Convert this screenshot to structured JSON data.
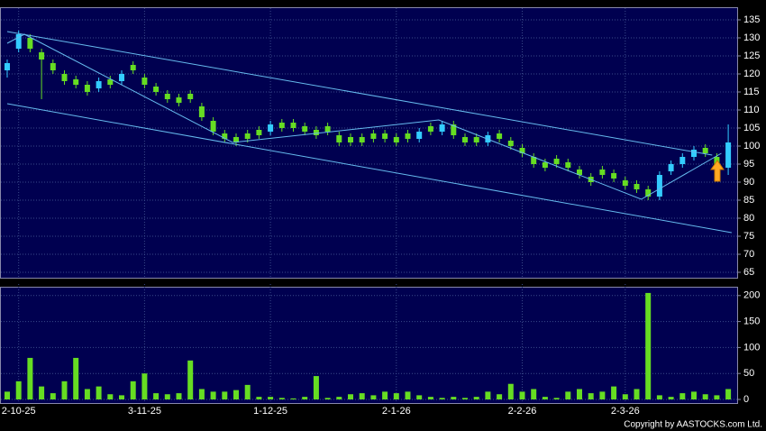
{
  "chart_data": [
    {
      "type": "candlestick",
      "categories": [
        null,
        "2-10-25",
        null,
        null,
        null,
        null,
        null,
        null,
        null,
        null,
        null,
        null,
        "3-11-25",
        null,
        null,
        null,
        null,
        null,
        null,
        null,
        null,
        null,
        null,
        "1-12-25",
        null,
        null,
        null,
        null,
        null,
        null,
        null,
        null,
        null,
        null,
        "2-1-26",
        null,
        null,
        null,
        null,
        null,
        null,
        null,
        null,
        null,
        null,
        "2-2-26",
        null,
        null,
        null,
        null,
        null,
        null,
        null,
        null,
        "2-3-26",
        null,
        null,
        null,
        null,
        null,
        null,
        null,
        null,
        null
      ],
      "open": [
        121,
        127,
        130,
        126,
        123,
        120,
        118.5,
        117,
        116,
        118.5,
        118,
        122.5,
        119,
        116.5,
        114.5,
        113.5,
        114.5,
        111,
        107,
        103.5,
        102.5,
        103.5,
        104.5,
        104,
        106.5,
        106.5,
        105.5,
        104.5,
        105.5,
        103,
        102.5,
        102.5,
        103.5,
        103.5,
        102.5,
        103.5,
        102,
        105.5,
        104,
        106,
        102.5,
        102.5,
        101,
        103.5,
        101.5,
        99.5,
        97,
        95.5,
        96.5,
        95.5,
        93.5,
        91.5,
        93.5,
        92.5,
        90.5,
        89.5,
        88,
        86,
        93,
        95,
        97,
        99.5,
        97,
        94
      ],
      "high": [
        124,
        132,
        131,
        127,
        124,
        121,
        119.5,
        118,
        119,
        119.5,
        121,
        123.5,
        120,
        117.5,
        115.5,
        114.5,
        115.5,
        112,
        108,
        104.5,
        103.5,
        104.5,
        105.5,
        107,
        107.5,
        107.5,
        106.5,
        105.5,
        106.5,
        104,
        103.5,
        103.5,
        104.5,
        104.5,
        103.5,
        104.5,
        105,
        106.5,
        107,
        107,
        103.5,
        103.5,
        104,
        104.5,
        102.5,
        100.5,
        98,
        96.5,
        97.5,
        96.5,
        94.5,
        92.5,
        94.5,
        93.5,
        91.5,
        90.5,
        89,
        93,
        96,
        98,
        100,
        100.5,
        98,
        106
      ],
      "low": [
        119,
        126,
        126,
        113,
        120,
        117,
        116,
        114,
        115,
        116,
        117,
        120,
        116,
        114,
        112,
        111,
        112,
        107,
        103,
        101,
        100,
        101,
        102,
        103,
        104,
        104,
        103,
        102,
        103,
        100,
        100,
        100,
        101,
        101,
        100,
        101,
        101,
        103,
        103,
        102,
        100,
        100,
        100,
        101,
        99,
        97,
        94,
        93,
        94,
        93,
        91,
        89,
        91,
        90,
        88,
        87,
        85,
        85,
        92,
        94,
        96,
        97,
        94,
        92
      ],
      "close": [
        123,
        131,
        127,
        124,
        121,
        118,
        117,
        115,
        118,
        117,
        120,
        121,
        117,
        115,
        113,
        112,
        113,
        108,
        104,
        102,
        101,
        102,
        103,
        106,
        105,
        105,
        104,
        103,
        104,
        101,
        101,
        101,
        102,
        102,
        101,
        102,
        104,
        104,
        106,
        103,
        101,
        101,
        103,
        102,
        100,
        98,
        95,
        94,
        95,
        94,
        92,
        90,
        92,
        91,
        89,
        88,
        86,
        92,
        95,
        97,
        99,
        98,
        95,
        101
      ],
      "up_color": "#33ccff",
      "down_color": "#66dd22",
      "ylim": [
        63.5,
        137.5
      ],
      "yticks": [
        65,
        70,
        75,
        80,
        85,
        90,
        95,
        100,
        105,
        110,
        115,
        120,
        125,
        130,
        135
      ],
      "grid": true,
      "trendlines": [
        {
          "x": [
            0,
            61.6
          ],
          "y": [
            131.75,
            97.5
          ]
        },
        {
          "x": [
            0,
            63.3
          ],
          "y": [
            111.75,
            76
          ]
        },
        {
          "x": [
            0,
            1.5,
            19.7,
            37.7,
            55.4,
            62.4
          ],
          "y": [
            128.5,
            131,
            101,
            107.25,
            85.25,
            98
          ]
        }
      ],
      "trendline_color": "#66bbee"
    },
    {
      "type": "bar",
      "values": [
        15,
        35,
        80,
        25,
        12,
        35,
        80,
        20,
        25,
        10,
        8,
        35,
        50,
        12,
        10,
        12,
        75,
        20,
        15,
        15,
        18,
        28,
        5,
        5,
        3,
        2,
        5,
        45,
        3,
        5,
        10,
        12,
        8,
        15,
        12,
        15,
        8,
        5,
        3,
        5,
        3,
        5,
        15,
        10,
        30,
        15,
        20,
        5,
        3,
        15,
        20,
        12,
        15,
        25,
        10,
        20,
        205,
        8,
        5,
        12,
        15,
        10,
        8,
        20
      ],
      "color": "#66dd22",
      "ylim": [
        0,
        217
      ],
      "yticks": [
        0,
        50,
        100,
        150,
        200
      ],
      "grid": true
    }
  ],
  "footer": {
    "copyright": "Copyright by AASTOCKS.com Ltd."
  }
}
